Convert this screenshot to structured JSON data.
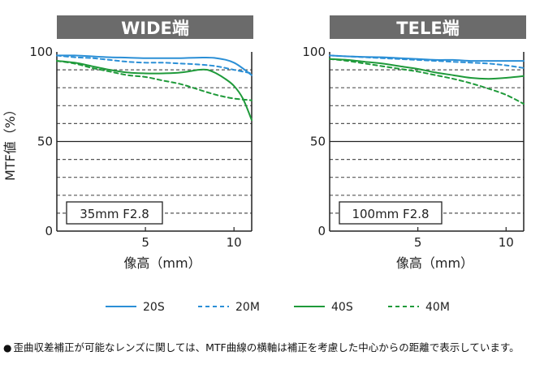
{
  "chart_data": [
    {
      "type": "line",
      "title": "WIDE端",
      "xlabel": "像高（mm）",
      "ylabel": "MTF値（%）",
      "xlim": [
        0,
        11
      ],
      "ylim": [
        0,
        100
      ],
      "xticks": [
        5,
        10
      ],
      "xtick_labels": [
        "5",
        "10"
      ],
      "yticks": [
        0,
        50,
        100
      ],
      "ytick_labels": [
        "0",
        "50",
        "100"
      ],
      "grid": "dashed horizontal every 10",
      "annotation": "35mm F2.8",
      "series": [
        {
          "name": "20S",
          "x": [
            0,
            1,
            2,
            3,
            4,
            5,
            6,
            7,
            8,
            9,
            10,
            11
          ],
          "y": [
            98,
            98,
            97.5,
            97,
            96.8,
            96.5,
            96.5,
            96.5,
            96.8,
            96.5,
            94,
            87
          ]
        },
        {
          "name": "20M",
          "x": [
            0,
            1,
            2,
            3,
            4,
            5,
            6,
            7,
            8,
            9,
            10,
            11
          ],
          "y": [
            98,
            97,
            96.5,
            95.5,
            94.5,
            94,
            94,
            93.5,
            93,
            92,
            90,
            88
          ]
        },
        {
          "name": "40S",
          "x": [
            0,
            1,
            2,
            3,
            4,
            5,
            6,
            7,
            8,
            8.5,
            9,
            9.5,
            10,
            10.5,
            11
          ],
          "y": [
            95,
            94,
            92,
            90,
            88.5,
            88,
            88,
            88.5,
            90,
            90,
            88,
            85,
            81,
            74,
            62
          ]
        },
        {
          "name": "40M",
          "x": [
            0,
            1,
            2,
            3,
            4,
            5,
            6,
            7,
            8,
            9,
            10,
            11
          ],
          "y": [
            95,
            93.5,
            91,
            89,
            87,
            86,
            84,
            82,
            79,
            76,
            74,
            73
          ]
        }
      ]
    },
    {
      "type": "line",
      "title": "TELE端",
      "xlabel": "像高（mm）",
      "ylabel": "",
      "xlim": [
        0,
        11
      ],
      "ylim": [
        0,
        100
      ],
      "xticks": [
        5,
        10
      ],
      "xtick_labels": [
        "5",
        "10"
      ],
      "yticks": [
        0,
        50,
        100
      ],
      "ytick_labels": [
        "0",
        "50",
        "100"
      ],
      "grid": "dashed horizontal every 10",
      "annotation": "100mm F2.8",
      "series": [
        {
          "name": "20S",
          "x": [
            0,
            1,
            2,
            3,
            4,
            5,
            6,
            7,
            8,
            9,
            10,
            11
          ],
          "y": [
            98,
            97.5,
            97.2,
            97,
            96.5,
            96,
            95.5,
            95.5,
            95,
            95,
            95,
            95
          ]
        },
        {
          "name": "20M",
          "x": [
            0,
            1,
            2,
            3,
            4,
            5,
            6,
            7,
            8,
            9,
            10,
            11
          ],
          "y": [
            98,
            97.5,
            97,
            96.5,
            96,
            95.5,
            95,
            94.5,
            94,
            93.5,
            92.5,
            91
          ]
        },
        {
          "name": "40S",
          "x": [
            0,
            1,
            2,
            3,
            4,
            5,
            6,
            7,
            8,
            9,
            10,
            11
          ],
          "y": [
            96,
            95.5,
            94.5,
            93.5,
            92,
            90.5,
            88.5,
            87,
            85.5,
            85,
            85.5,
            86.5
          ]
        },
        {
          "name": "40M",
          "x": [
            0,
            1,
            2,
            3,
            4,
            5,
            6,
            7,
            8,
            9,
            10,
            11
          ],
          "y": [
            96,
            95,
            93.5,
            92,
            90.5,
            89,
            87,
            85,
            82.5,
            79.5,
            76,
            71
          ]
        }
      ]
    }
  ],
  "legend": {
    "items": [
      {
        "name": "20S",
        "color": "#2b8fd6",
        "dash": "solid"
      },
      {
        "name": "20M",
        "color": "#2b8fd6",
        "dash": "dashed"
      },
      {
        "name": "40S",
        "color": "#1f9a3a",
        "dash": "solid"
      },
      {
        "name": "40M",
        "color": "#1f9a3a",
        "dash": "dashed"
      }
    ]
  },
  "colors": {
    "blue": "#2b8fd6",
    "green": "#1f9a3a",
    "header": "#6b6b6b",
    "grid": "#555555"
  },
  "note": {
    "bullet": "●",
    "text": "歪曲収差補正が可能なレンズに関しては、MTF曲線の横軸は補正を考慮した中心からの距離で表示しています。"
  }
}
